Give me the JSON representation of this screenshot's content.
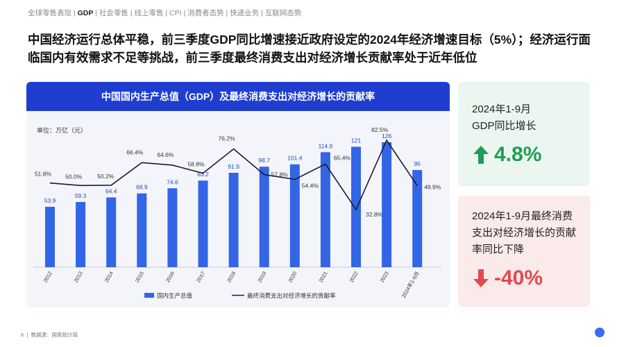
{
  "nav": {
    "items": [
      "全球零售表现",
      "GDP",
      "社会零售",
      "线上零售",
      "CPI",
      "消费者态势",
      "快递业务",
      "互联网态势"
    ],
    "active": 1
  },
  "title": "中国经济运行总体平稳，前三季度GDP同比增速接近政府设定的2024年经济增速目标（5%）；经济运行面临国内有效需求不足等挑战，前三季度最终消费支出对经济增长贡献率处于近年低位",
  "chart_data": {
    "type": "bar+line",
    "title": "中国国内生产总值（GDP）及最终消费支出对经济增长的贡献率",
    "unit": "单位：万亿（元）",
    "categories": [
      "2012",
      "2013",
      "2014",
      "2015",
      "2016",
      "2017",
      "2018",
      "2019",
      "2020",
      "2021",
      "2022",
      "2023",
      "2024年1-9月"
    ],
    "series": [
      {
        "name": "国内生产总值",
        "type": "bar",
        "color": "#3366e6",
        "values": [
          53.9,
          59.3,
          64.4,
          68.9,
          74.6,
          83.2,
          91.9,
          98.7,
          101.4,
          114.9,
          121,
          126,
          95
        ],
        "labels": [
          "53.9",
          "59.3",
          "64.4",
          "68.9",
          "74.6",
          "83.2",
          "91.9",
          "98.7",
          "101.4",
          "114.9",
          "121",
          "126",
          "95"
        ]
      },
      {
        "name": "最终消费支出对经济增长的贡献率",
        "type": "line",
        "color": "#1a1a2e",
        "values": [
          51.8,
          50.0,
          50.2,
          66.4,
          64.6,
          58.8,
          76.2,
          57.8,
          54.4,
          65.4,
          32.8,
          82.5,
          49.9
        ],
        "labels": [
          "51.8%",
          "50.0%",
          "50.2%",
          "66.4%",
          "64.6%",
          "58.8%",
          "76.2%",
          "57.8%",
          "54.4%",
          "65.4%",
          "32.8%",
          "82.5%",
          "49.9%"
        ]
      }
    ],
    "legend": "bottom"
  },
  "cards": [
    {
      "text": "2024年1-9月 GDP同比增长",
      "value": "4.8%",
      "direction": "up",
      "color": "#1f9d55"
    },
    {
      "text": "2024年1-9月最终消费支出对经济增长的贡献率同比下降",
      "value": "-40%",
      "direction": "down",
      "color": "#e5484d"
    }
  ],
  "footer": {
    "page": "6",
    "source": "数据源：国家统计局"
  }
}
